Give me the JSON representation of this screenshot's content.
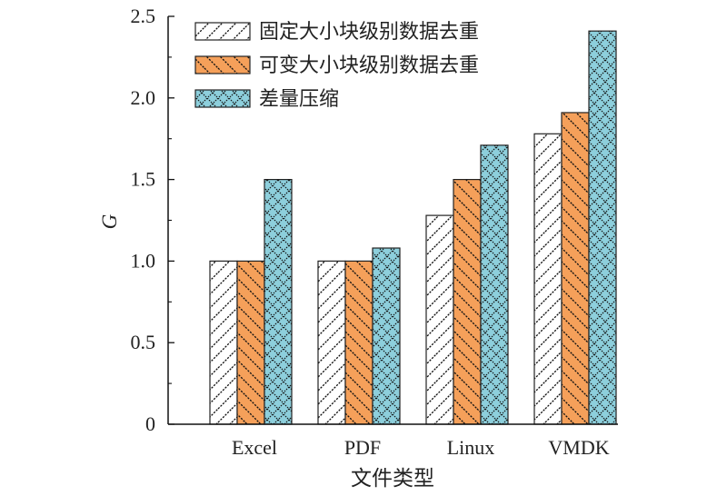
{
  "chart_data": {
    "type": "bar",
    "title": "",
    "xlabel": "文件类型",
    "ylabel": "G",
    "ylim": [
      0,
      2.5
    ],
    "yticks": [
      0,
      0.5,
      1.0,
      1.5,
      2.0,
      2.5
    ],
    "ytick_labels": [
      "0",
      "0.5",
      "1.0",
      "1.5",
      "2.0",
      "2.5"
    ],
    "minor_yticks": [
      0.25,
      0.75,
      1.25,
      1.75,
      2.25
    ],
    "grid": false,
    "legend_position": "top-left",
    "categories": [
      "Excel",
      "PDF",
      "Linux",
      "VMDK"
    ],
    "series": [
      {
        "name": "固定大小块级别数据去重",
        "color": "#ffffff",
        "pattern": "forward-diagonal-hatch",
        "values": [
          1.0,
          1.0,
          1.28,
          1.78
        ]
      },
      {
        "name": "可变大小块级别数据去重",
        "color": "#f5a05a",
        "pattern": "backward-diagonal-hatch",
        "values": [
          1.0,
          1.0,
          1.5,
          1.91
        ]
      },
      {
        "name": "差量压缩",
        "color": "#8dcfdc",
        "pattern": "diamond-crosshatch",
        "values": [
          1.5,
          1.08,
          1.71,
          2.41
        ]
      }
    ]
  }
}
